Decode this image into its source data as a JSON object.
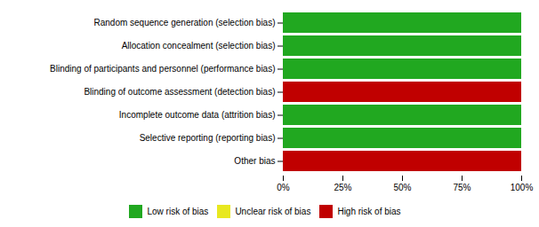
{
  "chart_data": {
    "type": "bar",
    "orientation": "horizontal",
    "stacked": true,
    "categories": [
      "Random sequence generation (selection bias)",
      "Allocation concealment (selection bias)",
      "Blinding of participants and personnel (performance bias)",
      "Blinding of outcome assessment (detection bias)",
      "Incomplete outcome data (attrition bias)",
      "Selective reporting (reporting bias)",
      "Other bias"
    ],
    "series": [
      {
        "name": "Low risk of bias",
        "color": "#21a820",
        "values": [
          100,
          100,
          100,
          0,
          100,
          100,
          0
        ]
      },
      {
        "name": "Unclear risk of bias",
        "color": "#e8e820",
        "values": [
          0,
          0,
          0,
          0,
          0,
          0,
          0
        ]
      },
      {
        "name": "High risk of bias",
        "color": "#c00000",
        "values": [
          0,
          0,
          0,
          100,
          0,
          0,
          100
        ]
      }
    ],
    "xlim": [
      0,
      100
    ],
    "xticks": [
      {
        "value": 0,
        "label": "0%"
      },
      {
        "value": 25,
        "label": "25%"
      },
      {
        "value": 50,
        "label": "50%"
      },
      {
        "value": 75,
        "label": "75%"
      },
      {
        "value": 100,
        "label": "100%"
      }
    ],
    "grid": false,
    "legend": "bottom"
  }
}
